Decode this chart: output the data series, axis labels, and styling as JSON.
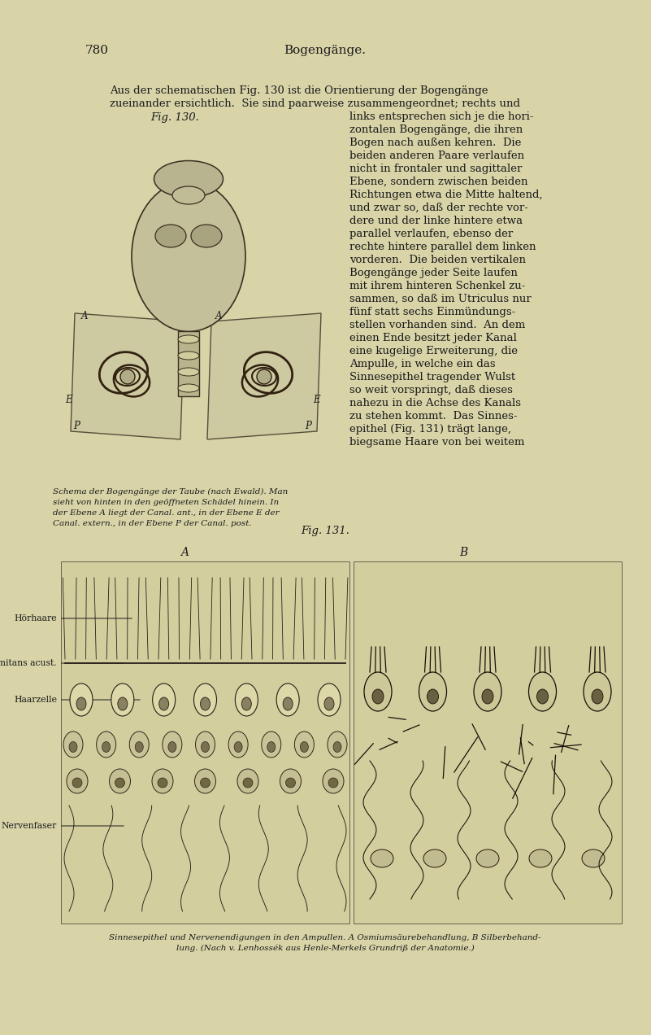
{
  "bg_color": "#d8d4a8",
  "page_number": "780",
  "header_center": "Bogengänge.",
  "fig130_label": "Fig. 130.",
  "fig131_label": "Fig. 131.",
  "fig130_caption": "Schema der Bogengänge der Taube (nach Ewald). Man\nsieht von hinten in den geöffneten Schädel hinein. In\nder Ebene A liegt der Canal. ant., in der Ebene E der\nCanal. extern., in der Ebene P der Canal. post.",
  "fig131_caption": "Sinnesepithel und Nervenendigungen in den Ampullen. A Osmiumsäurebehandlung, B Silberbehand-\nlung. (Nach v. Lenhossék aus Henle-Merkels Grundriß der Anatomie.)",
  "label_A": "A",
  "label_B": "B",
  "label_hoerhaare": "Hörhaare",
  "label_limitans": "Limitans acust.",
  "label_haarzelle": "Haarzelle",
  "label_nervenfaser": "Nervenfaser",
  "text_color": "#1a1a1a",
  "font_size_body": 9.5,
  "font_size_header": 11,
  "font_size_caption": 8.5,
  "font_size_label": 10,
  "right_col_lines": [
    "links entsprechen sich je die hori-",
    "zontalen Bogengänge, die ihren",
    "Bogen nach außen kehren.  Die",
    "beiden anderen Paare verlaufen",
    "nicht in frontaler und sagittaler",
    "Ebene, sondern zwischen beiden",
    "Richtungen etwa die Mitte haltend,",
    "und zwar so, daß der rechte vor-",
    "dere und der linke hintere etwa",
    "parallel verlaufen, ebenso der",
    "rechte hintere parallel dem linken",
    "vorderen.  Die beiden vertikalen",
    "Bogengänge jeder Seite laufen",
    "mit ihrem hinteren Schenkel zu-",
    "sammen, so daß im Utriculus nur",
    "fünf statt sechs Einmündungs-",
    "stellen vorhanden sind.  An dem",
    "einen Ende besitzt jeder Kanal",
    "eine kugelige Erweiterung, die",
    "Ampulle, in welche ein das",
    "Sinnesepithel tragender Wulst",
    "so weit vorspringt, daß dieses",
    "nahezu in die Achse des Kanals",
    "zu stehen kommt.  Das Sinnes-",
    "epithel (Fig. 131) trägt lange,",
    "biegsame Haare von bei weitem"
  ],
  "top_text_lines": [
    "Aus der schematischen Fig. 130 ist die Orientierung der Bogengänge",
    "zueinander ersichtlich.  Sie sind paarweise zusammengeordnet; rechts und"
  ]
}
